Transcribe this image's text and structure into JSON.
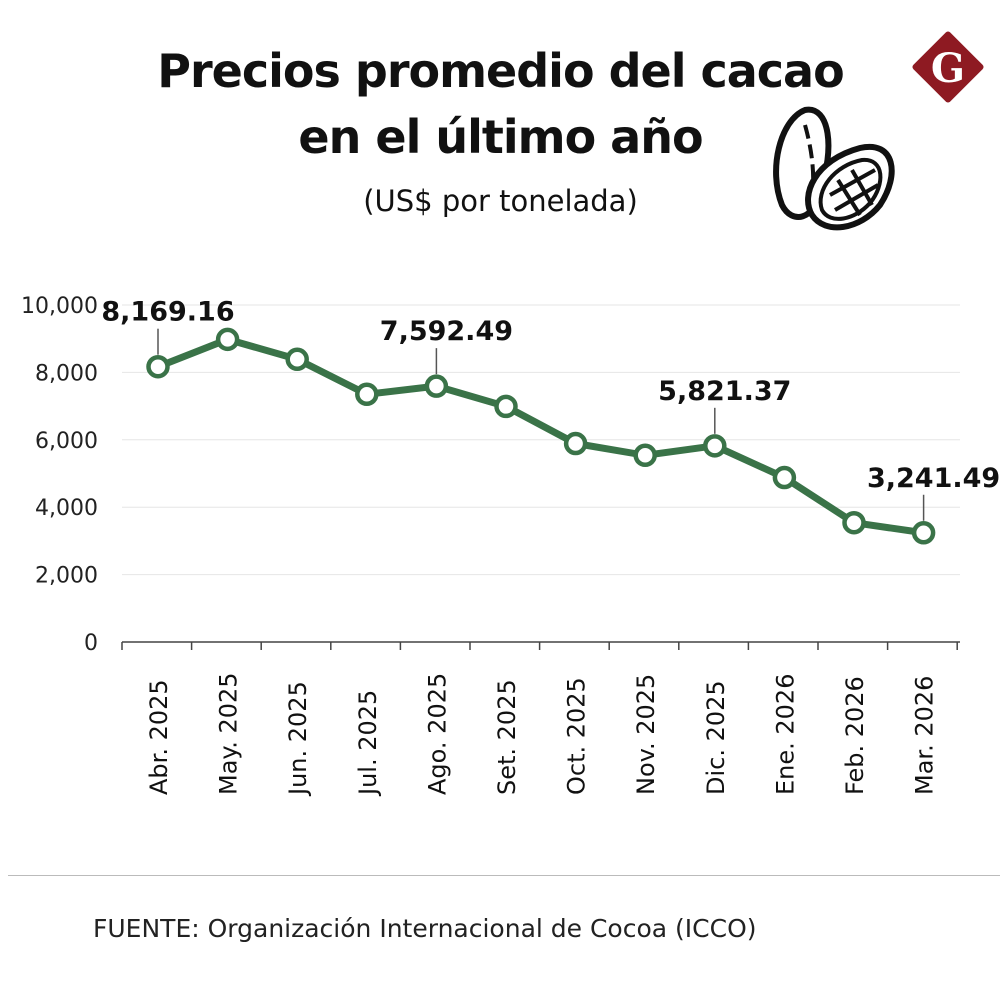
{
  "header": {
    "title_line1": "Precios promedio del cacao",
    "title_line2": "en el último año",
    "subtitle": "(US$ por tonelada)",
    "logo_letter": "G",
    "logo_color": "#8e1a22",
    "icon": "cacao-pod-icon"
  },
  "footer": {
    "source": "FUENTE: Organización Internacional de Cocoa (ICCO)"
  },
  "chart_data": {
    "type": "line",
    "title": "Precios promedio del cacao en el último año",
    "ylabel": "(US$ por tonelada)",
    "ylim": [
      0,
      10000
    ],
    "yticks": [
      "0",
      "2,000",
      "4,000",
      "6,000",
      "8,000",
      "10,000"
    ],
    "grid": true,
    "color": "#3a7348",
    "categories": [
      "Abr. 2025",
      "May. 2025",
      "Jun. 2025",
      "Jul. 2025",
      "Ago. 2025",
      "Set. 2025",
      "Oct. 2025",
      "Nov. 2025",
      "Dic. 2025",
      "Ene. 2026",
      "Feb. 2026",
      "Mar. 2026"
    ],
    "values": [
      8169.16,
      8980,
      8390,
      7350,
      7592.49,
      6990,
      5890,
      5540,
      5821.37,
      4880,
      3540,
      3241.49
    ],
    "data_labels": [
      {
        "index": 0,
        "text": "8,169.16"
      },
      {
        "index": 4,
        "text": "7,592.49"
      },
      {
        "index": 8,
        "text": "5,821.37"
      },
      {
        "index": 11,
        "text": "3,241.49"
      }
    ]
  }
}
